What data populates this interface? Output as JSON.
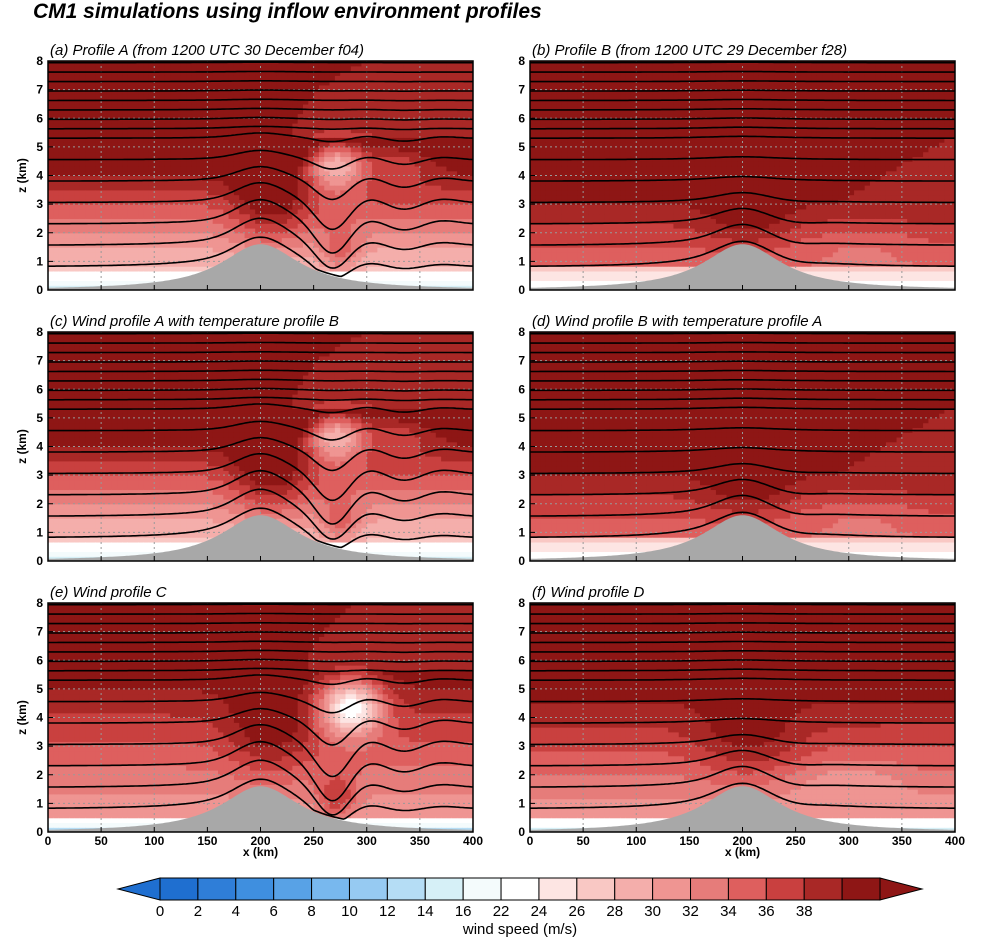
{
  "title": "CM1 simulations using inflow environment profiles",
  "chart_data": {
    "type": "heatmap",
    "title": "CM1 simulations using inflow environment profiles",
    "xlabel": "x (km)",
    "ylabel": "z (km)",
    "xlim": [
      0,
      400
    ],
    "ylim": [
      0,
      8
    ],
    "x_ticks": [
      0,
      50,
      100,
      150,
      200,
      250,
      300,
      350,
      400
    ],
    "y_ticks": [
      0,
      1,
      2,
      3,
      4,
      5,
      6,
      7,
      8
    ],
    "grid": true,
    "terrain": {
      "peak_x_km": 200,
      "peak_height_km": 1.6
    },
    "colorbar": {
      "label": "wind speed (m/s)",
      "tick_labels": [
        "0",
        "2",
        "4",
        "6",
        "8",
        "10",
        "12",
        "14",
        "16",
        "22",
        "24",
        "26",
        "28",
        "30",
        "32",
        "34",
        "36",
        "38"
      ],
      "colors": [
        "#1f6fd0",
        "#2f7ed8",
        "#3f8fdf",
        "#58a2e6",
        "#78b8ee",
        "#96caf2",
        "#b5ddf5",
        "#d6f0f7",
        "#f4fbfc",
        "#ffffff",
        "#fde5e3",
        "#f9c8c4",
        "#f4aeab",
        "#ef9592",
        "#e67c7a",
        "#de5f5e",
        "#c9403f",
        "#a92826",
        "#8e1615"
      ]
    },
    "panels": [
      {
        "label": "(a) Profile A (from 1200 UTC 30 December f04)",
        "variant": "A",
        "show_xlabel": false,
        "show_ylabel": true,
        "show_yticks": true,
        "show_xticks": false
      },
      {
        "label": "(b) Profile B (from 1200 UTC 29 December f28)",
        "variant": "B",
        "show_xlabel": false,
        "show_ylabel": false,
        "show_yticks": false,
        "show_xticks": false
      },
      {
        "label": "(c) Wind profile A with temperature profile B",
        "variant": "A",
        "show_xlabel": false,
        "show_ylabel": true,
        "show_yticks": true,
        "show_xticks": false
      },
      {
        "label": "(d) Wind profile B with temperature profile A",
        "variant": "B",
        "show_xlabel": false,
        "show_ylabel": false,
        "show_yticks": false,
        "show_xticks": false
      },
      {
        "label": "(e) Wind profile C",
        "variant": "C",
        "show_xlabel": true,
        "show_ylabel": true,
        "show_yticks": true,
        "show_xticks": true
      },
      {
        "label": "(f) Wind profile D",
        "variant": "D",
        "show_xlabel": true,
        "show_ylabel": false,
        "show_yticks": false,
        "show_xticks": true
      }
    ]
  }
}
